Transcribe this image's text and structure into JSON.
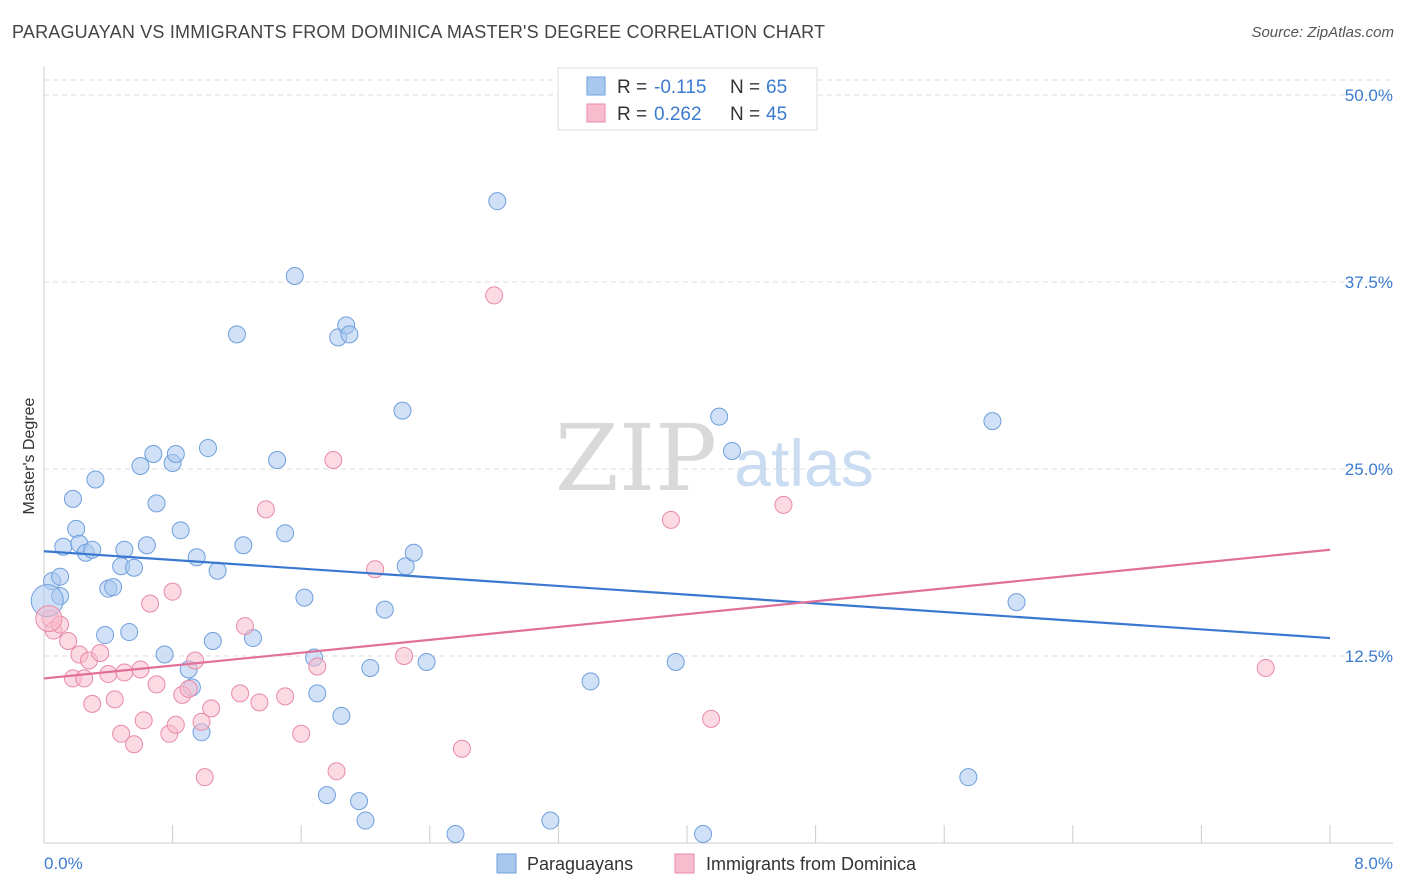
{
  "title": "PARAGUAYAN VS IMMIGRANTS FROM DOMINICA MASTER'S DEGREE CORRELATION CHART",
  "source": "Source: ZipAtlas.com",
  "watermark": {
    "zip": "ZIP",
    "atlas": "atlas"
  },
  "colors": {
    "blue_fill": "#a9c8f0",
    "blue_stroke": "#6f9fdc",
    "blue_line": "#3a78d0",
    "pink_fill": "#f7bccd",
    "pink_stroke": "#e88aa7",
    "pink_line": "#e0709a",
    "tick_text": "#3c7bd0",
    "grid": "#dddddd"
  },
  "legend": {
    "rows": [
      {
        "r_label": "R =",
        "r_value": "-0.115",
        "n_label": "N =",
        "n_value": "65"
      },
      {
        "r_label": "R =",
        "r_value": "0.262",
        "n_label": "N =",
        "n_value": "45"
      }
    ]
  },
  "chart_data": {
    "type": "scatter",
    "xlabel": "",
    "ylabel": "Master's Degree",
    "xlim": [
      0,
      8
    ],
    "ylim": [
      0,
      51
    ],
    "x_tick_labels": [
      "0.0%",
      "8.0%"
    ],
    "y_ticks": [
      12.5,
      25.0,
      37.5,
      50.0
    ],
    "y_tick_labels": [
      "12.5%",
      "25.0%",
      "37.5%",
      "50.0%"
    ],
    "legend_position": "top-center",
    "series": [
      {
        "name": "Paraguayans",
        "trend": {
          "x": [
            0,
            8
          ],
          "y": [
            19.5,
            13.7
          ]
        },
        "points": [
          [
            0.05,
            17.5
          ],
          [
            0.1,
            17.8
          ],
          [
            0.12,
            19.8
          ],
          [
            0.18,
            23.0
          ],
          [
            0.2,
            21.0
          ],
          [
            0.22,
            20.0
          ],
          [
            0.26,
            19.4
          ],
          [
            0.3,
            19.6
          ],
          [
            0.32,
            24.3
          ],
          [
            0.38,
            13.9
          ],
          [
            0.4,
            17.0
          ],
          [
            0.43,
            17.1
          ],
          [
            0.48,
            18.5
          ],
          [
            0.5,
            19.6
          ],
          [
            0.53,
            14.1
          ],
          [
            0.56,
            18.4
          ],
          [
            0.6,
            25.2
          ],
          [
            0.64,
            19.9
          ],
          [
            0.68,
            26.0
          ],
          [
            0.7,
            22.7
          ],
          [
            0.75,
            12.6
          ],
          [
            0.8,
            25.4
          ],
          [
            0.82,
            26.0
          ],
          [
            0.85,
            20.9
          ],
          [
            0.9,
            11.6
          ],
          [
            0.92,
            10.4
          ],
          [
            0.95,
            19.1
          ],
          [
            0.98,
            7.4
          ],
          [
            1.02,
            26.4
          ],
          [
            1.05,
            13.5
          ],
          [
            1.08,
            18.2
          ],
          [
            1.2,
            34.0
          ],
          [
            1.24,
            19.9
          ],
          [
            1.3,
            13.7
          ],
          [
            1.45,
            25.6
          ],
          [
            1.5,
            20.7
          ],
          [
            1.56,
            37.9
          ],
          [
            1.62,
            16.4
          ],
          [
            1.68,
            12.4
          ],
          [
            1.7,
            10.0
          ],
          [
            1.76,
            3.2
          ],
          [
            1.83,
            33.8
          ],
          [
            1.88,
            34.6
          ],
          [
            1.9,
            34.0
          ],
          [
            1.96,
            2.8
          ],
          [
            2.0,
            1.5
          ],
          [
            2.03,
            11.7
          ],
          [
            2.12,
            15.6
          ],
          [
            2.23,
            28.9
          ],
          [
            2.25,
            18.5
          ],
          [
            2.3,
            19.4
          ],
          [
            2.38,
            12.1
          ],
          [
            2.56,
            0.6
          ],
          [
            2.82,
            42.9
          ],
          [
            3.15,
            1.5
          ],
          [
            3.4,
            10.8
          ],
          [
            3.93,
            12.1
          ],
          [
            4.1,
            0.6
          ],
          [
            4.2,
            28.5
          ],
          [
            4.28,
            26.2
          ],
          [
            5.75,
            4.4
          ],
          [
            5.9,
            28.2
          ],
          [
            6.05,
            16.1
          ],
          [
            1.85,
            8.5
          ],
          [
            0.1,
            16.5
          ]
        ]
      },
      {
        "name": "Immigrants from Dominica",
        "trend": {
          "x": [
            0,
            8
          ],
          "y": [
            11.0,
            19.6
          ]
        },
        "points": [
          [
            0.04,
            15.0
          ],
          [
            0.06,
            14.2
          ],
          [
            0.1,
            14.6
          ],
          [
            0.15,
            13.5
          ],
          [
            0.18,
            11.0
          ],
          [
            0.22,
            12.6
          ],
          [
            0.25,
            11.0
          ],
          [
            0.28,
            12.2
          ],
          [
            0.3,
            9.3
          ],
          [
            0.35,
            12.7
          ],
          [
            0.4,
            11.3
          ],
          [
            0.44,
            9.6
          ],
          [
            0.48,
            7.3
          ],
          [
            0.5,
            11.4
          ],
          [
            0.56,
            6.6
          ],
          [
            0.6,
            11.6
          ],
          [
            0.62,
            8.2
          ],
          [
            0.66,
            16.0
          ],
          [
            0.7,
            10.6
          ],
          [
            0.78,
            7.3
          ],
          [
            0.8,
            16.8
          ],
          [
            0.82,
            7.9
          ],
          [
            0.86,
            9.9
          ],
          [
            0.9,
            10.3
          ],
          [
            0.94,
            12.2
          ],
          [
            0.98,
            8.1
          ],
          [
            1.0,
            4.4
          ],
          [
            1.04,
            9.0
          ],
          [
            1.22,
            10.0
          ],
          [
            1.25,
            14.5
          ],
          [
            1.34,
            9.4
          ],
          [
            1.38,
            22.3
          ],
          [
            1.5,
            9.8
          ],
          [
            1.6,
            7.3
          ],
          [
            1.7,
            11.8
          ],
          [
            1.8,
            25.6
          ],
          [
            1.82,
            4.8
          ],
          [
            2.06,
            18.3
          ],
          [
            2.24,
            12.5
          ],
          [
            2.6,
            6.3
          ],
          [
            2.8,
            36.6
          ],
          [
            3.9,
            21.6
          ],
          [
            4.15,
            8.3
          ],
          [
            4.6,
            22.6
          ],
          [
            7.6,
            11.7
          ]
        ]
      }
    ]
  }
}
